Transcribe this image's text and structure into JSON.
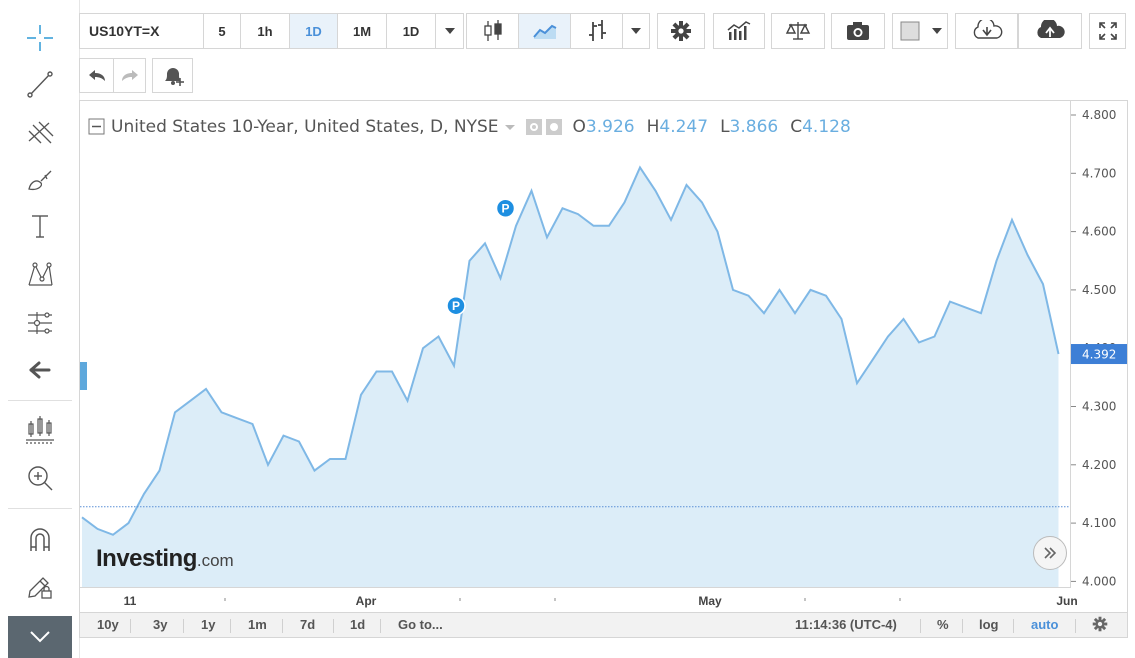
{
  "toolbar": {
    "symbol": "US10YT=X",
    "intervals": [
      "5",
      "1h",
      "1D",
      "1M"
    ],
    "active_interval": "1D",
    "interval_dropdown": "1D"
  },
  "legend": {
    "title": "United States 10-Year, United States, D, NYSE",
    "o_label": "O",
    "o_value": "3.926",
    "h_label": "H",
    "h_value": "4.247",
    "l_label": "L",
    "l_value": "3.866",
    "c_label": "C",
    "c_value": "4.128"
  },
  "logo": {
    "brand": "Investing",
    "suffix": ".com"
  },
  "current_price": "4.392",
  "bottom_bar": {
    "ranges": [
      "10y",
      "3y",
      "1y",
      "1m",
      "7d",
      "1d"
    ],
    "goto": "Go to...",
    "time": "11:14:36 (UTC-4)",
    "percent": "%",
    "log": "log",
    "auto": "auto"
  },
  "colors": {
    "line": "#7fb8e6",
    "fill": "#dcedf8",
    "accent": "#4a90d9",
    "price_tag": "#3d7fd6"
  },
  "chart_data": {
    "type": "area",
    "ylim": [
      4.0,
      4.8
    ],
    "y_ticks": [
      "4.800",
      "4.700",
      "4.600",
      "4.500",
      "4.400",
      "4.300",
      "4.200",
      "4.100",
      "4.000"
    ],
    "x_labels": [
      "11",
      "Apr",
      "May",
      "Jun"
    ],
    "baseline": 4.128,
    "values": [
      4.11,
      4.09,
      4.08,
      4.1,
      4.15,
      4.19,
      4.29,
      4.31,
      4.33,
      4.29,
      4.28,
      4.27,
      4.2,
      4.25,
      4.24,
      4.19,
      4.21,
      4.21,
      4.32,
      4.36,
      4.36,
      4.31,
      4.4,
      4.42,
      4.37,
      4.55,
      4.58,
      4.52,
      4.61,
      4.67,
      4.59,
      4.64,
      4.63,
      4.61,
      4.61,
      4.65,
      4.71,
      4.67,
      4.62,
      4.68,
      4.65,
      4.6,
      4.5,
      4.49,
      4.46,
      4.5,
      4.46,
      4.5,
      4.49,
      4.45,
      4.34,
      4.38,
      4.42,
      4.45,
      4.41,
      4.42,
      4.48,
      4.47,
      4.46,
      4.55,
      4.62,
      4.56,
      4.51,
      4.39
    ],
    "markers": [
      {
        "label": "P",
        "index": 24
      },
      {
        "label": "P",
        "index": 27
      }
    ]
  }
}
